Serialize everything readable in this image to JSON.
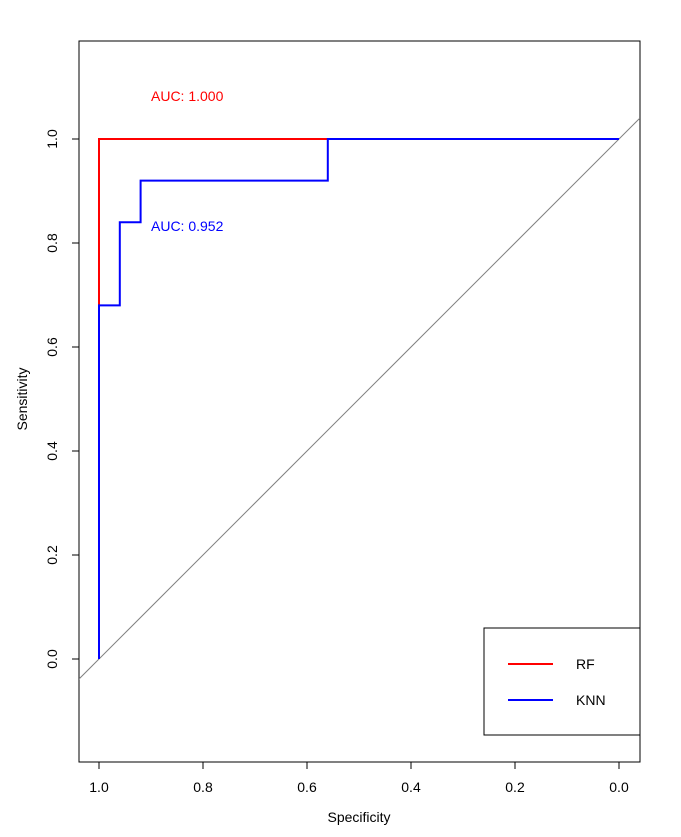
{
  "chart_data": {
    "type": "line",
    "xlabel": "Specificity",
    "ylabel": "Sensitivity",
    "x_reversed": true,
    "xlim": [
      1.0,
      0.0
    ],
    "ylim": [
      0.0,
      1.0
    ],
    "x_ticks": [
      "1.0",
      "0.8",
      "0.6",
      "0.4",
      "0.2",
      "0.0"
    ],
    "y_ticks": [
      "0.0",
      "0.2",
      "0.4",
      "0.6",
      "0.8",
      "1.0"
    ],
    "grid": false,
    "legend_position": "bottom-right",
    "reference_line": "diagonal",
    "series": [
      {
        "name": "RF",
        "color": "#ff0000",
        "auc_label": "AUC: 1.000",
        "points": [
          {
            "x": 1.0,
            "y": 0.0
          },
          {
            "x": 1.0,
            "y": 1.0
          },
          {
            "x": 0.0,
            "y": 1.0
          }
        ]
      },
      {
        "name": "KNN",
        "color": "#0000ff",
        "auc_label": "AUC: 0.952",
        "points": [
          {
            "x": 1.0,
            "y": 0.0
          },
          {
            "x": 1.0,
            "y": 0.68
          },
          {
            "x": 0.96,
            "y": 0.68
          },
          {
            "x": 0.96,
            "y": 0.84
          },
          {
            "x": 0.92,
            "y": 0.84
          },
          {
            "x": 0.92,
            "y": 0.92
          },
          {
            "x": 0.56,
            "y": 0.92
          },
          {
            "x": 0.56,
            "y": 1.0
          },
          {
            "x": 0.0,
            "y": 1.0
          }
        ]
      }
    ]
  }
}
